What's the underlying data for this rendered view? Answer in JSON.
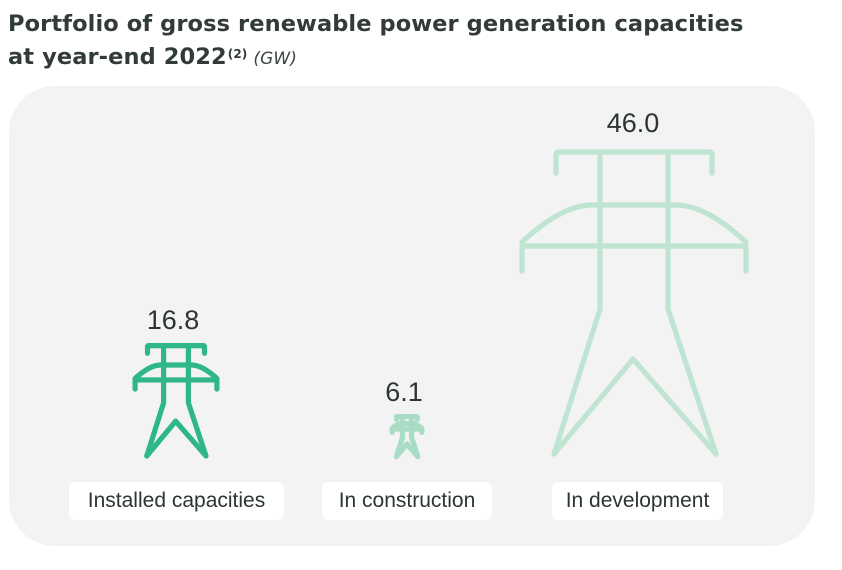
{
  "title": {
    "line1": "Portfolio of gross renewable power generation capacities",
    "line2": "at year-end 2022",
    "footnote": "(2)",
    "unit": "(GW)"
  },
  "chart_data": {
    "type": "bar",
    "categories": [
      "Installed capacities",
      "In construction",
      "In development"
    ],
    "values": [
      16.8,
      6.1,
      46.0
    ],
    "value_labels": [
      "16.8",
      "6.1",
      "46.0"
    ],
    "title": "Portfolio of gross renewable power generation capacities at year-end 2022(2) (GW)",
    "marker": "transmission-tower-icon",
    "colors": [
      "#2fb68a",
      "#a9dcc4",
      "#bfe4d2"
    ]
  }
}
